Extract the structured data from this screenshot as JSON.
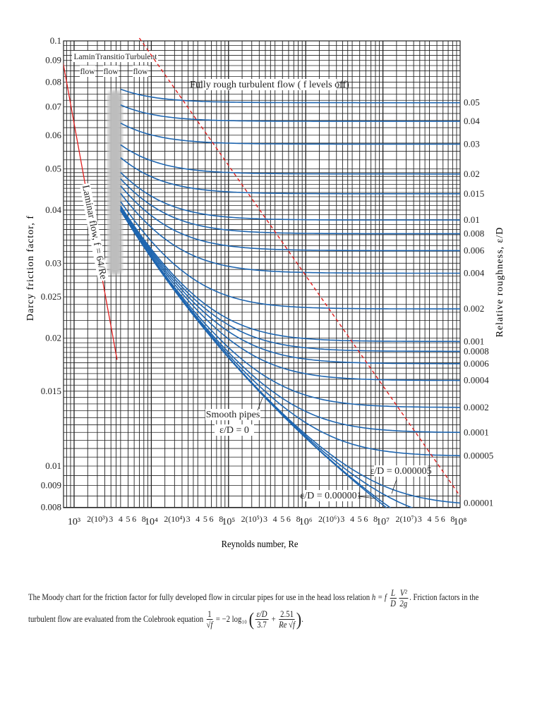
{
  "chart_data": {
    "type": "line",
    "title": "",
    "xlabel": "Reynolds number, Re",
    "ylabel": "Darcy friction factor, f",
    "ylabel_right": "Relative roughness, ε/D",
    "x_scale": "log",
    "y_scale": "log",
    "xlim": [
      700,
      100000000
    ],
    "ylim": [
      0.008,
      0.1
    ],
    "grid": true,
    "y_ticks": [
      {
        "value": 0.1,
        "label": "0.1"
      },
      {
        "value": 0.09,
        "label": "0.09"
      },
      {
        "value": 0.08,
        "label": "0.08"
      },
      {
        "value": 0.07,
        "label": "0.07"
      },
      {
        "value": 0.06,
        "label": "0.06"
      },
      {
        "value": 0.05,
        "label": "0.05"
      },
      {
        "value": 0.04,
        "label": "0.04"
      },
      {
        "value": 0.03,
        "label": "0.03"
      },
      {
        "value": 0.025,
        "label": "0.025"
      },
      {
        "value": 0.02,
        "label": "0.02"
      },
      {
        "value": 0.015,
        "label": "0.015"
      },
      {
        "value": 0.01,
        "label": "0.01"
      },
      {
        "value": 0.009,
        "label": "0.009"
      },
      {
        "value": 0.008,
        "label": "0.008"
      }
    ],
    "x_ticks": [
      {
        "value": 1000,
        "label": "10³"
      },
      {
        "value": 2000,
        "label": "2(10³)"
      },
      {
        "value": 3000,
        "label": "3"
      },
      {
        "value": 4000,
        "label": "4"
      },
      {
        "value": 5000,
        "label": "5"
      },
      {
        "value": 6000,
        "label": "6"
      },
      {
        "value": 8000,
        "label": "8"
      },
      {
        "value": 10000,
        "label": "10⁴"
      },
      {
        "value": 20000,
        "label": "2(10⁴)"
      },
      {
        "value": 30000,
        "label": "3"
      },
      {
        "value": 40000,
        "label": "4"
      },
      {
        "value": 50000,
        "label": "5"
      },
      {
        "value": 60000,
        "label": "6"
      },
      {
        "value": 80000,
        "label": "8"
      },
      {
        "value": 100000,
        "label": "10⁵"
      },
      {
        "value": 200000,
        "label": "2(10⁵)"
      },
      {
        "value": 300000,
        "label": "3"
      },
      {
        "value": 400000,
        "label": "4"
      },
      {
        "value": 500000,
        "label": "5"
      },
      {
        "value": 600000,
        "label": "6"
      },
      {
        "value": 800000,
        "label": "8"
      },
      {
        "value": 1000000,
        "label": "10⁶"
      },
      {
        "value": 2000000,
        "label": "2(10⁶)"
      },
      {
        "value": 3000000,
        "label": "3"
      },
      {
        "value": 4000000,
        "label": "4"
      },
      {
        "value": 5000000,
        "label": "5"
      },
      {
        "value": 6000000,
        "label": "6"
      },
      {
        "value": 8000000,
        "label": "8"
      },
      {
        "value": 10000000,
        "label": "10⁷"
      },
      {
        "value": 20000000,
        "label": "2(10⁷)"
      },
      {
        "value": 30000000,
        "label": "3"
      },
      {
        "value": 40000000,
        "label": "4"
      },
      {
        "value": 50000000,
        "label": "5"
      },
      {
        "value": 60000000,
        "label": "6"
      },
      {
        "value": 80000000,
        "label": "8"
      },
      {
        "value": 100000000,
        "label": "10⁸"
      }
    ],
    "laminar": {
      "equation": "f = 64/Re",
      "re_range": [
        640,
        3600
      ],
      "color": "#e02020"
    },
    "fully_rough_boundary": {
      "points": [
        {
          "Re": 7000,
          "f": 0.1
        },
        {
          "Re": 100000000,
          "f": 0.0085
        }
      ],
      "style": "dashed",
      "color": "#e02020"
    },
    "turbulent_re_range": [
      4000,
      100000000
    ],
    "series_color": "#1f66b0",
    "roughness_series": [
      {
        "eD": 0.05,
        "label": "0.05"
      },
      {
        "eD": 0.04,
        "label": "0.04"
      },
      {
        "eD": 0.03,
        "label": "0.03"
      },
      {
        "eD": 0.02,
        "label": "0.02"
      },
      {
        "eD": 0.015,
        "label": "0.015"
      },
      {
        "eD": 0.01,
        "label": "0.01"
      },
      {
        "eD": 0.008,
        "label": "0.008"
      },
      {
        "eD": 0.006,
        "label": "0.006"
      },
      {
        "eD": 0.004,
        "label": "0.004"
      },
      {
        "eD": 0.002,
        "label": "0.002"
      },
      {
        "eD": 0.001,
        "label": "0.001"
      },
      {
        "eD": 0.0008,
        "label": "0.0008"
      },
      {
        "eD": 0.0006,
        "label": "0.0006"
      },
      {
        "eD": 0.0004,
        "label": "0.0004"
      },
      {
        "eD": 0.0002,
        "label": "0.0002"
      },
      {
        "eD": 0.0001,
        "label": "0.0001"
      },
      {
        "eD": 5e-05,
        "label": "0.00005"
      },
      {
        "eD": 1e-05,
        "label": "0.00001"
      },
      {
        "eD": 5e-06,
        "label": ""
      },
      {
        "eD": 1e-06,
        "label": ""
      },
      {
        "eD": 0,
        "label": ""
      }
    ],
    "annotations": {
      "laminar_region": [
        "Laminar",
        "flow"
      ],
      "transitional_region": [
        "Transitional",
        "flow"
      ],
      "turbulent_region": [
        "Turbulent",
        "flow"
      ],
      "fully_rough": "Fully rough turbulent flow ( f levels off)",
      "laminar_line": "Laminar flow, f = 64/Re",
      "smooth_pipes": [
        "Smooth pipes",
        "ε/D = 0"
      ],
      "ed_000005": "ε/D = 0.000005",
      "ed_000001": "ε/D = 0.000001"
    }
  },
  "caption": {
    "line1_a": "The Moody chart for the friction factor for fully developed flow in circular pipes for use in the head loss relation ",
    "h_eq": "h = f",
    "L": "L",
    "D": "D",
    "V2": "V²",
    "twog": "2g",
    "line1_b": ". Friction factors in the",
    "line2_a": "turbulent flow are evaluated from the Colebrook equation ",
    "one": "1",
    "sqrtf": "√f",
    "eq_mid": " = −2 log₁₀ ",
    "eD": "ε/D",
    "three7": "3.7",
    "plus": " + ",
    "two51": "2.51",
    "Resqrtf": "Re √f",
    "end": "."
  }
}
